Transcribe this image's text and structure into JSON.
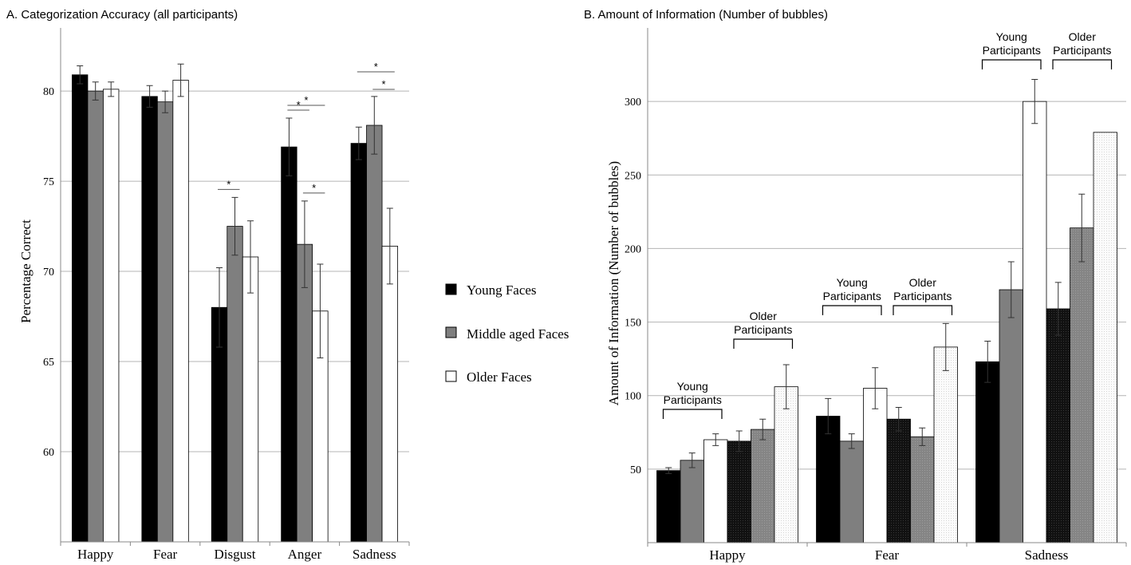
{
  "chart_data": [
    {
      "type": "bar",
      "title": "A. Categorization Accuracy (all participants)",
      "ylabel": "Percentage Correct",
      "xlabel": "",
      "ylim": [
        55,
        83.5
      ],
      "yticks": [
        60,
        65,
        70,
        75,
        80
      ],
      "grid": true,
      "categories": [
        "Happy",
        "Fear",
        "Disgust",
        "Anger",
        "Sadness"
      ],
      "series": [
        {
          "name": "Young Faces",
          "color": "#000000",
          "values": [
            80.9,
            79.7,
            68.0,
            76.9,
            77.1
          ],
          "errors": [
            0.5,
            0.6,
            2.2,
            1.6,
            0.9
          ]
        },
        {
          "name": "Middle aged Faces",
          "color": "#7f7f7f",
          "values": [
            80.0,
            79.4,
            72.5,
            71.5,
            78.1
          ],
          "errors": [
            0.5,
            0.6,
            1.6,
            2.4,
            1.6
          ]
        },
        {
          "name": "Older Faces",
          "color": "#ffffff",
          "values": [
            80.1,
            80.6,
            70.8,
            67.8,
            71.4
          ],
          "errors": [
            0.4,
            0.9,
            2.0,
            2.6,
            2.1
          ]
        }
      ],
      "significance": [
        {
          "category": "Disgust",
          "from": 0,
          "to": 1,
          "label": "*"
        },
        {
          "category": "Anger",
          "from": 0,
          "to": 1,
          "label": "*"
        },
        {
          "category": "Anger",
          "from": 0,
          "to": 2,
          "label": "*"
        },
        {
          "category": "Anger",
          "from": 1,
          "to": 2,
          "label": "*"
        },
        {
          "category": "Sadness",
          "from": 0,
          "to": 2,
          "label": "*"
        },
        {
          "category": "Sadness",
          "from": 1,
          "to": 2,
          "label": "*"
        }
      ],
      "legend": {
        "position": "right",
        "entries": [
          "Young Faces",
          "Middle aged Faces",
          "Older Faces"
        ]
      }
    },
    {
      "type": "bar",
      "title": "B. Amount of Information (Number of bubbles)",
      "ylabel": "Amount of Information (Number of bubbles)",
      "xlabel": "",
      "ylim": [
        0,
        350
      ],
      "yticks": [
        50,
        100,
        150,
        200,
        250,
        300
      ],
      "grid": true,
      "categories": [
        "Happy",
        "Fear",
        "Sadness"
      ],
      "group_labels": {
        "young": [
          "Young",
          "Participants"
        ],
        "older": [
          "Older",
          "Participants"
        ]
      },
      "series": [
        {
          "name": "Young Participants – Young Faces",
          "color": "#000000",
          "values": [
            49,
            86,
            123
          ],
          "errors": [
            2,
            12,
            14
          ]
        },
        {
          "name": "Young Participants – Middle aged Faces",
          "color": "#7f7f7f",
          "values": [
            56,
            69,
            172
          ],
          "errors": [
            5,
            5,
            19
          ]
        },
        {
          "name": "Young Participants – Older Faces",
          "color": "#ffffff",
          "values": [
            70,
            105,
            300
          ],
          "errors": [
            4,
            14,
            15
          ]
        },
        {
          "name": "Older Participants – Young Faces",
          "color": "#141414",
          "values": [
            69,
            84,
            159
          ],
          "errors": [
            7,
            8,
            18
          ]
        },
        {
          "name": "Older Participants – Middle aged Faces",
          "color": "#8a8a8a",
          "values": [
            77,
            72,
            214
          ],
          "errors": [
            7,
            6,
            23
          ]
        },
        {
          "name": "Older Participants – Older Faces",
          "color": "#f2f2f2",
          "values": [
            106,
            133,
            279
          ],
          "errors": [
            15,
            16,
            0
          ]
        }
      ]
    }
  ]
}
